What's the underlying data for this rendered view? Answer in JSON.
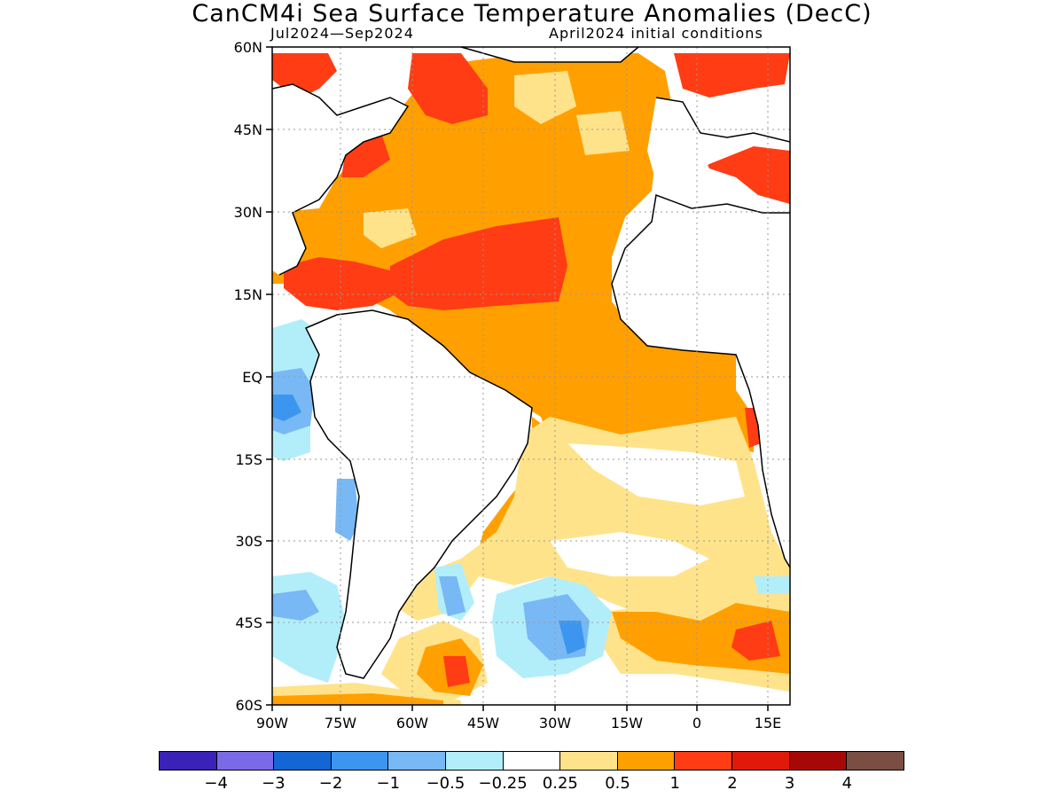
{
  "title": "CanCM4i Sea Surface Temperature Anomalies (DecC)",
  "period": "Jul2024—Sep2024",
  "init": "April2024 initial conditions",
  "lat_labels": [
    "60N",
    "45N",
    "30N",
    "15N",
    "EQ",
    "15S",
    "30S",
    "45S",
    "60S"
  ],
  "lon_labels": [
    "90W",
    "75W",
    "60W",
    "45W",
    "30W",
    "15W",
    "0",
    "15E"
  ],
  "colorbar": {
    "colors": [
      "#3a22b8",
      "#7b6ae6",
      "#1466d4",
      "#3c96ef",
      "#78b8f4",
      "#b2eefa",
      "#ffffff",
      "#ffe38a",
      "#ffa000",
      "#ff3c14",
      "#e01a0a",
      "#a60808",
      "#7a4e42"
    ],
    "labels": [
      "−4",
      "−3",
      "−2",
      "−1",
      "−0.5",
      "−0.25",
      "0.25",
      "0.5",
      "1",
      "2",
      "3",
      "4"
    ]
  },
  "icons": {
    "map": "sst-anomaly-map",
    "land": "continent-outline"
  }
}
